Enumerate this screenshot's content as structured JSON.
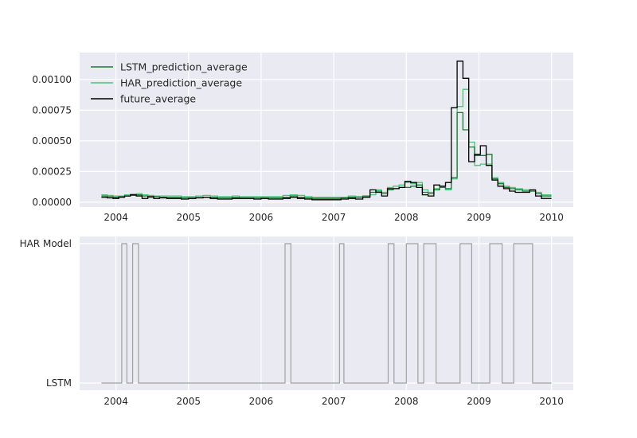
{
  "chart_data": [
    {
      "type": "line",
      "title": "",
      "xlabel": "",
      "ylabel": "",
      "xlim": [
        2003.5,
        2010.3
      ],
      "ylim": [
        -4e-05,
        0.00122
      ],
      "x_ticks": [
        2004,
        2005,
        2006,
        2007,
        2008,
        2009,
        2010
      ],
      "x_tick_labels": [
        "2004",
        "2005",
        "2006",
        "2007",
        "2008",
        "2009",
        "2010"
      ],
      "y_ticks": [
        0.0,
        0.00025,
        0.0005,
        0.00075,
        0.001
      ],
      "y_tick_labels": [
        "0.00000",
        "0.00025",
        "0.00050",
        "0.00075",
        "0.00100"
      ],
      "grid": true,
      "legend_position": "top-left",
      "colors": {
        "background": "#eaeaf2",
        "LSTM_prediction_average": "#1a7a2e",
        "HAR_prediction_average": "#4cc27a",
        "future_average": "#000000"
      },
      "series": [
        {
          "name": "LSTM_prediction_average",
          "x": [
            2003.8,
            2003.88,
            2003.96,
            2004.04,
            2004.12,
            2004.2,
            2004.28,
            2004.36,
            2004.44,
            2004.52,
            2004.6,
            2004.7,
            2004.8,
            2004.9,
            2005.0,
            2005.1,
            2005.2,
            2005.3,
            2005.4,
            2005.5,
            2005.6,
            2005.7,
            2005.8,
            2005.9,
            2006.0,
            2006.1,
            2006.2,
            2006.3,
            2006.4,
            2006.5,
            2006.6,
            2006.7,
            2006.8,
            2006.9,
            2007.0,
            2007.1,
            2007.2,
            2007.3,
            2007.4,
            2007.5,
            2007.58,
            2007.66,
            2007.74,
            2007.82,
            2007.9,
            2007.98,
            2008.06,
            2008.14,
            2008.22,
            2008.3,
            2008.38,
            2008.46,
            2008.54,
            2008.62,
            2008.7,
            2008.78,
            2008.86,
            2008.94,
            2009.02,
            2009.1,
            2009.18,
            2009.26,
            2009.34,
            2009.42,
            2009.5,
            2009.6,
            2009.7,
            2009.78,
            2009.86,
            2009.94,
            2010.0
          ],
          "y": [
            5e-05,
            4.5e-05,
            4e-05,
            4.5e-05,
            5e-05,
            5.5e-05,
            6e-05,
            5e-05,
            4e-05,
            4.5e-05,
            4e-05,
            3.8e-05,
            3.8e-05,
            3.5e-05,
            3.5e-05,
            3.8e-05,
            4e-05,
            3.8e-05,
            3.5e-05,
            3.5e-05,
            3.8e-05,
            3.5e-05,
            3.5e-05,
            3.5e-05,
            3.5e-05,
            3.5e-05,
            3.5e-05,
            4e-05,
            5e-05,
            4e-05,
            3.5e-05,
            3e-05,
            3e-05,
            3e-05,
            3e-05,
            3.5e-05,
            4e-05,
            4e-05,
            5e-05,
            8e-05,
            9e-05,
            7e-05,
            0.0001,
            0.00011,
            0.00012,
            0.00012,
            0.00013,
            0.00014,
            8e-05,
            7e-05,
            0.0001,
            0.00012,
            0.00011,
            0.0002,
            0.00073,
            0.00059,
            0.00045,
            0.00038,
            0.00038,
            0.00039,
            0.00019,
            0.00015,
            0.00012,
            0.00011,
            0.0001,
            9e-05,
            9e-05,
            7e-05,
            5e-05,
            5e-05,
            5e-05
          ]
        },
        {
          "name": "HAR_prediction_average",
          "x": [
            2003.8,
            2003.88,
            2003.96,
            2004.04,
            2004.12,
            2004.2,
            2004.28,
            2004.36,
            2004.44,
            2004.52,
            2004.6,
            2004.7,
            2004.8,
            2004.9,
            2005.0,
            2005.1,
            2005.2,
            2005.3,
            2005.4,
            2005.5,
            2005.6,
            2005.7,
            2005.8,
            2005.9,
            2006.0,
            2006.1,
            2006.2,
            2006.3,
            2006.4,
            2006.5,
            2006.6,
            2006.7,
            2006.8,
            2006.9,
            2007.0,
            2007.1,
            2007.2,
            2007.3,
            2007.4,
            2007.5,
            2007.58,
            2007.66,
            2007.74,
            2007.82,
            2007.9,
            2007.98,
            2008.06,
            2008.14,
            2008.22,
            2008.3,
            2008.38,
            2008.46,
            2008.54,
            2008.62,
            2008.7,
            2008.78,
            2008.86,
            2008.94,
            2009.02,
            2009.1,
            2009.18,
            2009.26,
            2009.34,
            2009.42,
            2009.5,
            2009.6,
            2009.7,
            2009.78,
            2009.86,
            2009.94,
            2010.0
          ],
          "y": [
            6e-05,
            5.5e-05,
            5e-05,
            5e-05,
            6e-05,
            6.5e-05,
            7e-05,
            6e-05,
            5.5e-05,
            5e-05,
            5e-05,
            5e-05,
            5e-05,
            4.5e-05,
            4.5e-05,
            5e-05,
            5.5e-05,
            5e-05,
            4.5e-05,
            4.5e-05,
            5e-05,
            4.5e-05,
            4.5e-05,
            4.5e-05,
            4.5e-05,
            4.5e-05,
            4.5e-05,
            5.5e-05,
            6e-05,
            5.5e-05,
            4.5e-05,
            4e-05,
            4e-05,
            4e-05,
            4e-05,
            4e-05,
            5e-05,
            4.5e-05,
            5e-05,
            6e-05,
            0.0001,
            8e-05,
            0.00012,
            0.00013,
            0.00014,
            0.00016,
            0.00015,
            0.00016,
            0.0001,
            8e-05,
            0.00011,
            0.00013,
            0.0001,
            0.00019,
            0.00078,
            0.00092,
            0.00049,
            0.0003,
            0.00031,
            0.00031,
            0.0002,
            0.00016,
            0.00013,
            0.00012,
            0.00011,
            0.0001,
            9e-05,
            8e-05,
            6e-05,
            6e-05,
            6e-05
          ]
        },
        {
          "name": "future_average",
          "x": [
            2003.8,
            2003.88,
            2003.96,
            2004.04,
            2004.12,
            2004.2,
            2004.28,
            2004.36,
            2004.44,
            2004.52,
            2004.6,
            2004.7,
            2004.8,
            2004.9,
            2005.0,
            2005.1,
            2005.2,
            2005.3,
            2005.4,
            2005.5,
            2005.6,
            2005.7,
            2005.8,
            2005.9,
            2006.0,
            2006.1,
            2006.2,
            2006.3,
            2006.4,
            2006.5,
            2006.6,
            2006.7,
            2006.8,
            2006.9,
            2007.0,
            2007.1,
            2007.2,
            2007.3,
            2007.4,
            2007.5,
            2007.58,
            2007.66,
            2007.74,
            2007.82,
            2007.9,
            2007.98,
            2008.06,
            2008.14,
            2008.22,
            2008.3,
            2008.38,
            2008.46,
            2008.54,
            2008.62,
            2008.7,
            2008.78,
            2008.86,
            2008.94,
            2009.02,
            2009.1,
            2009.18,
            2009.26,
            2009.34,
            2009.42,
            2009.5,
            2009.6,
            2009.7,
            2009.78,
            2009.86,
            2009.94,
            2010.0
          ],
          "y": [
            4e-05,
            3.5e-05,
            3e-05,
            4e-05,
            5e-05,
            6e-05,
            5e-05,
            3e-05,
            4.5e-05,
            3e-05,
            3.5e-05,
            3e-05,
            3e-05,
            2.5e-05,
            3e-05,
            3.5e-05,
            4e-05,
            3e-05,
            2.5e-05,
            2.5e-05,
            3e-05,
            3e-05,
            3e-05,
            2.5e-05,
            3e-05,
            2.5e-05,
            2.5e-05,
            3e-05,
            4e-05,
            3e-05,
            2.5e-05,
            2e-05,
            2e-05,
            2e-05,
            2e-05,
            2.5e-05,
            3e-05,
            2.5e-05,
            4e-05,
            0.0001,
            8e-05,
            5e-05,
            0.00011,
            0.00011,
            0.00012,
            0.00017,
            0.00016,
            0.00012,
            6e-05,
            5e-05,
            0.00014,
            0.00013,
            0.00016,
            0.00077,
            0.00115,
            0.00101,
            0.00033,
            0.00039,
            0.00046,
            0.0003,
            0.00018,
            0.00013,
            0.00011,
            9e-05,
            8e-05,
            8e-05,
            0.0001,
            5e-05,
            3e-05,
            3e-05,
            3e-05
          ]
        }
      ]
    },
    {
      "type": "line",
      "title": "",
      "xlabel": "",
      "ylabel": "",
      "xlim": [
        2003.5,
        2010.3
      ],
      "x_ticks": [
        2004,
        2005,
        2006,
        2007,
        2008,
        2009,
        2010
      ],
      "x_tick_labels": [
        "2004",
        "2005",
        "2006",
        "2007",
        "2008",
        "2009",
        "2010"
      ],
      "y_categories": [
        "LSTM",
        "HAR Model"
      ],
      "grid": true,
      "colors": {
        "background": "#eaeaf2",
        "line": "#a0a0a0"
      },
      "series": [
        {
          "x": [
            2003.8,
            2004.08,
            2004.08,
            2004.15,
            2004.15,
            2004.23,
            2004.23,
            2004.31,
            2004.31,
            2006.33,
            2006.33,
            2006.41,
            2006.41,
            2007.08,
            2007.08,
            2007.14,
            2007.14,
            2007.75,
            2007.75,
            2007.83,
            2007.83,
            2008.0,
            2008.0,
            2008.16,
            2008.16,
            2008.24,
            2008.24,
            2008.41,
            2008.41,
            2008.74,
            2008.74,
            2008.9,
            2008.9,
            2009.15,
            2009.15,
            2009.32,
            2009.32,
            2009.48,
            2009.48,
            2009.74,
            2009.74,
            2010.0
          ],
          "y": [
            "LSTM",
            "LSTM",
            "HAR Model",
            "HAR Model",
            "LSTM",
            "LSTM",
            "HAR Model",
            "HAR Model",
            "LSTM",
            "LSTM",
            "HAR Model",
            "HAR Model",
            "LSTM",
            "LSTM",
            "HAR Model",
            "HAR Model",
            "LSTM",
            "LSTM",
            "HAR Model",
            "HAR Model",
            "LSTM",
            "LSTM",
            "HAR Model",
            "HAR Model",
            "LSTM",
            "LSTM",
            "HAR Model",
            "HAR Model",
            "LSTM",
            "LSTM",
            "HAR Model",
            "HAR Model",
            "LSTM",
            "LSTM",
            "HAR Model",
            "HAR Model",
            "LSTM",
            "LSTM",
            "HAR Model",
            "HAR Model",
            "LSTM",
            "LSTM"
          ]
        }
      ]
    }
  ]
}
